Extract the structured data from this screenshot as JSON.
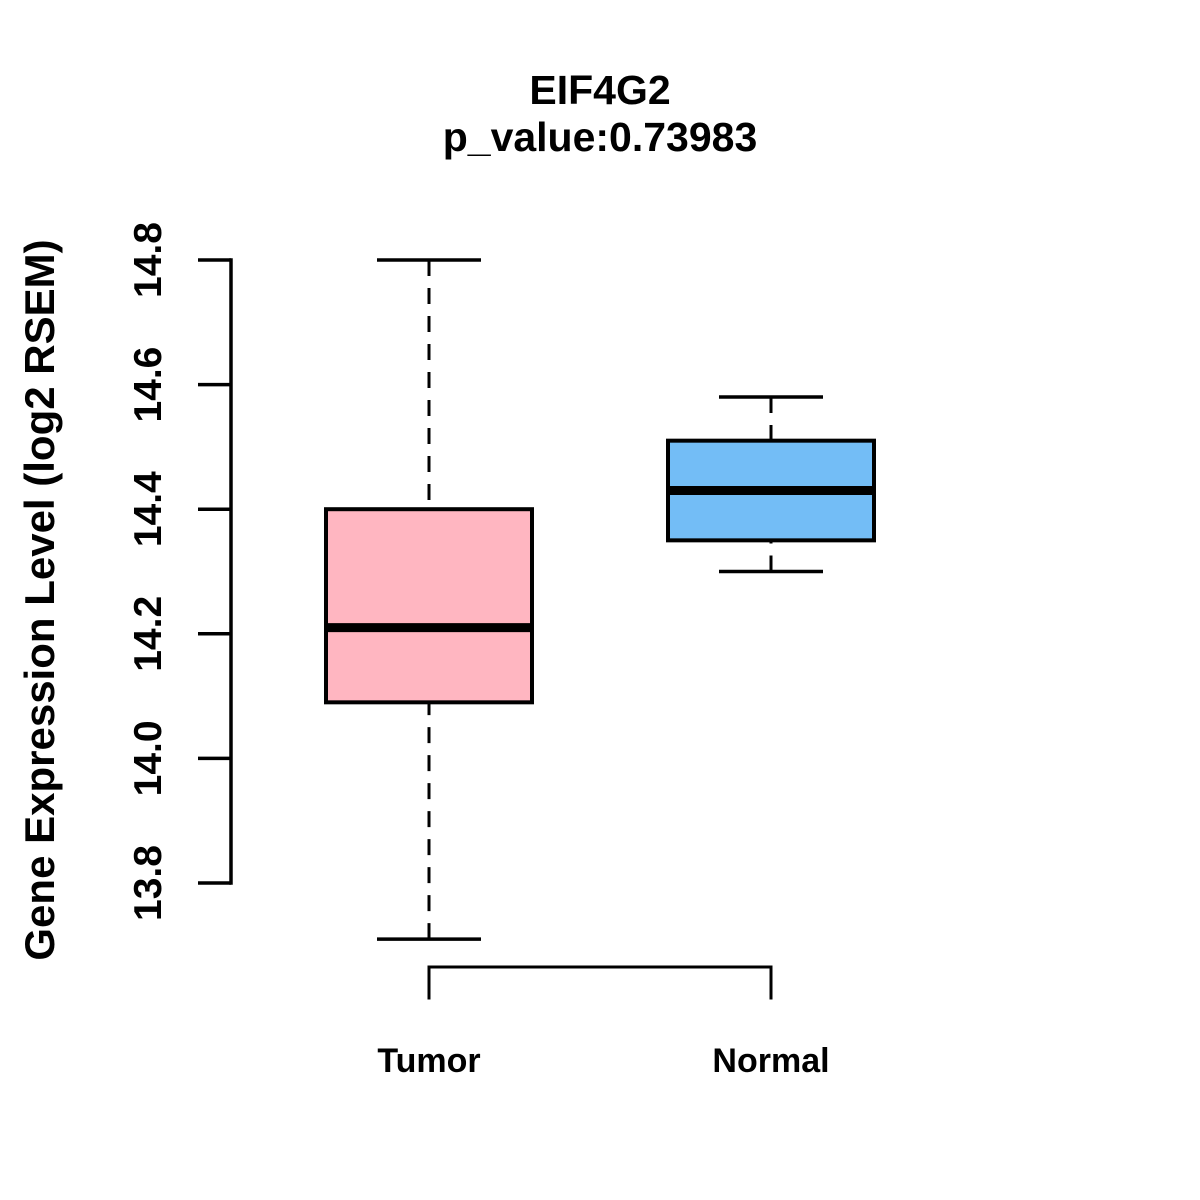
{
  "chart": {
    "title": "EIF4G2",
    "subtitle": "p_value:0.73983",
    "ylabel": "Gene Expression Level (log2 RSEM)"
  },
  "chart_data": {
    "type": "boxplot",
    "title": "EIF4G2",
    "subtitle": "p_value:0.73983",
    "xlabel": "",
    "ylabel": "Gene Expression Level (log2 RSEM)",
    "categories": [
      "Tumor",
      "Normal"
    ],
    "series": [
      {
        "name": "Tumor",
        "fill": "#FFB6C1",
        "lower_whisker": 13.71,
        "q1": 14.09,
        "median": 14.21,
        "q3": 14.4,
        "upper_whisker": 14.8
      },
      {
        "name": "Normal",
        "fill": "#73BDF6",
        "lower_whisker": 14.3,
        "q1": 14.35,
        "median": 14.43,
        "q3": 14.51,
        "upper_whisker": 14.58
      }
    ],
    "y_axis": {
      "tick_labels": [
        "13.8",
        "14.0",
        "14.2",
        "14.4",
        "14.6",
        "14.8"
      ],
      "axis_line_range": [
        13.8,
        14.8
      ]
    },
    "ylim": [
      13.65,
      14.85
    ],
    "grid": false,
    "legend": false,
    "whisker_line_style": "dashed",
    "box_border_color": "#000000",
    "median_line_color": "#000000"
  },
  "colors": {
    "tumor_fill": "#FFB6C1",
    "normal_fill": "#73BDF6",
    "line": "#000000",
    "background": "#FFFFFF"
  }
}
